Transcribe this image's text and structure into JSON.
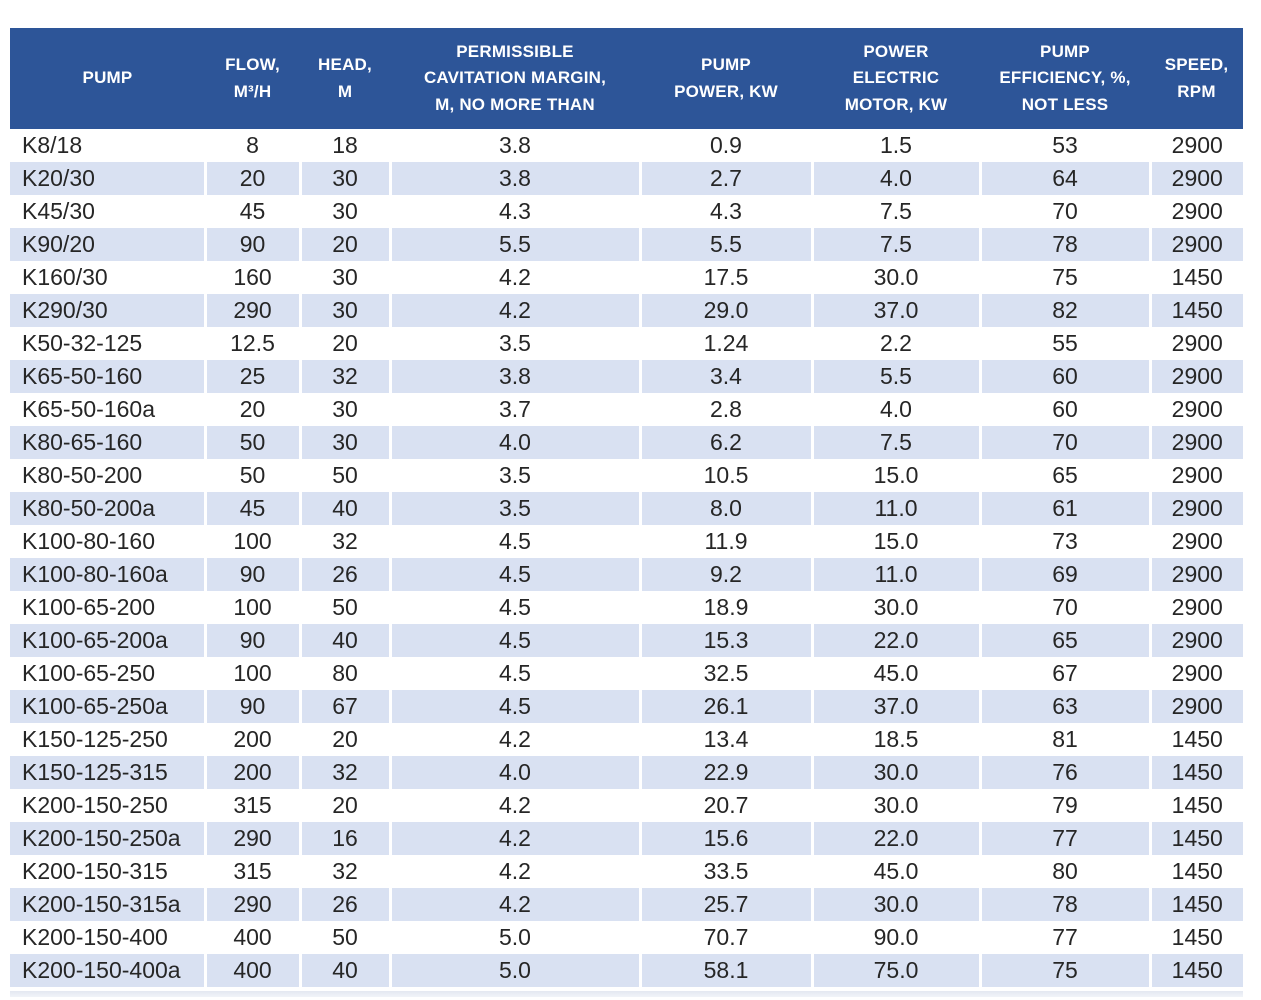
{
  "style": {
    "header_bg": "#2d5598",
    "header_text": "#ffffff",
    "stripe_bg": "#d9e1f2",
    "body_text": "#262626"
  },
  "chart_data": {
    "type": "table",
    "columns": [
      "PUMP",
      "FLOW,\nM³/H",
      "HEAD,\nM",
      "PERMISSIBLE\nCAVITATION MARGIN,\nM, NO MORE THAN",
      "PUMP\nPOWER, KW",
      "POWER\nELECTRIC\nMOTOR, KW",
      "PUMP\nEFFICIENCY, %,\nNOT LESS",
      "SPEED,\nRPM"
    ],
    "rows": [
      [
        "K8/18",
        "8",
        "18",
        "3.8",
        "0.9",
        "1.5",
        "53",
        "2900"
      ],
      [
        "K20/30",
        "20",
        "30",
        "3.8",
        "2.7",
        "4.0",
        "64",
        "2900"
      ],
      [
        "K45/30",
        "45",
        "30",
        "4.3",
        "4.3",
        "7.5",
        "70",
        "2900"
      ],
      [
        "K90/20",
        "90",
        "20",
        "5.5",
        "5.5",
        "7.5",
        "78",
        "2900"
      ],
      [
        "K160/30",
        "160",
        "30",
        "4.2",
        "17.5",
        "30.0",
        "75",
        "1450"
      ],
      [
        "K290/30",
        "290",
        "30",
        "4.2",
        "29.0",
        "37.0",
        "82",
        "1450"
      ],
      [
        "K50-32-125",
        "12.5",
        "20",
        "3.5",
        "1.24",
        "2.2",
        "55",
        "2900"
      ],
      [
        "K65-50-160",
        "25",
        "32",
        "3.8",
        "3.4",
        "5.5",
        "60",
        "2900"
      ],
      [
        "K65-50-160a",
        "20",
        "30",
        "3.7",
        "2.8",
        "4.0",
        "60",
        "2900"
      ],
      [
        "K80-65-160",
        "50",
        "30",
        "4.0",
        "6.2",
        "7.5",
        "70",
        "2900"
      ],
      [
        "K80-50-200",
        "50",
        "50",
        "3.5",
        "10.5",
        "15.0",
        "65",
        "2900"
      ],
      [
        "K80-50-200a",
        "45",
        "40",
        "3.5",
        "8.0",
        "11.0",
        "61",
        "2900"
      ],
      [
        "K100-80-160",
        "100",
        "32",
        "4.5",
        "11.9",
        "15.0",
        "73",
        "2900"
      ],
      [
        "K100-80-160a",
        "90",
        "26",
        "4.5",
        "9.2",
        "11.0",
        "69",
        "2900"
      ],
      [
        "K100-65-200",
        "100",
        "50",
        "4.5",
        "18.9",
        "30.0",
        "70",
        "2900"
      ],
      [
        "K100-65-200a",
        "90",
        "40",
        "4.5",
        "15.3",
        "22.0",
        "65",
        "2900"
      ],
      [
        "K100-65-250",
        "100",
        "80",
        "4.5",
        "32.5",
        "45.0",
        "67",
        "2900"
      ],
      [
        "K100-65-250a",
        "90",
        "67",
        "4.5",
        "26.1",
        "37.0",
        "63",
        "2900"
      ],
      [
        "K150-125-250",
        "200",
        "20",
        "4.2",
        "13.4",
        "18.5",
        "81",
        "1450"
      ],
      [
        "K150-125-315",
        "200",
        "32",
        "4.0",
        "22.9",
        "30.0",
        "76",
        "1450"
      ],
      [
        "K200-150-250",
        "315",
        "20",
        "4.2",
        "20.7",
        "30.0",
        "79",
        "1450"
      ],
      [
        "K200-150-250a",
        "290",
        "16",
        "4.2",
        "15.6",
        "22.0",
        "77",
        "1450"
      ],
      [
        "K200-150-315",
        "315",
        "32",
        "4.2",
        "33.5",
        "45.0",
        "80",
        "1450"
      ],
      [
        "K200-150-315a",
        "290",
        "26",
        "4.2",
        "25.7",
        "30.0",
        "78",
        "1450"
      ],
      [
        "K200-150-400",
        "400",
        "50",
        "5.0",
        "70.7",
        "90.0",
        "77",
        "1450"
      ],
      [
        "K200-150-400a",
        "400",
        "40",
        "5.0",
        "58.1",
        "75.0",
        "75",
        "1450"
      ]
    ]
  }
}
